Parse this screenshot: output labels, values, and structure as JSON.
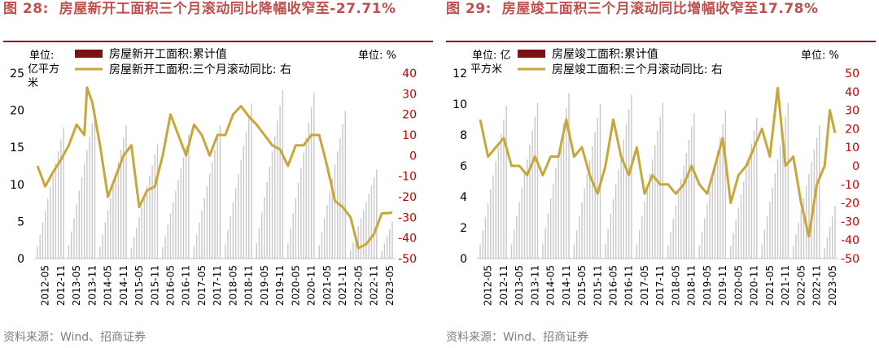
{
  "charts": [
    {
      "id": "left",
      "title": "图 28:  房屋新开工面积三个月滚动同比降幅收窄至-27.71%",
      "source": "资料来源：Wind、招商证券",
      "left_unit": "单位:亿平方米",
      "right_unit": "单位:  %",
      "legend": [
        "房屋新开工面积:累计值",
        "房屋新开工面积:三个月滚动同比:  右"
      ]
    },
    {
      "id": "right",
      "title": "图 29:  房屋竣工面积三个月滚动同比增幅收窄至17.78%",
      "source": "资料来源：Wind、招商证券",
      "left_unit": "单位: 亿平方米",
      "right_unit": "单位:  %",
      "legend": [
        "房屋竣工面积:累计值",
        "房屋竣工面积:三个月滚动同比:  右"
      ]
    }
  ],
  "chart_data": [
    {
      "type": "bar+line",
      "title": "图 28:  房屋新开工面积三个月滚动同比降幅收窄至-27.71%",
      "x_start": "2012-02",
      "x_end": "2023-06",
      "x_tick_labels": [
        "2012-05",
        "2012-11",
        "2013-05",
        "2013-11",
        "2014-05",
        "2014-11",
        "2015-05",
        "2015-11",
        "2016-05",
        "2016-11",
        "2017-05",
        "2017-11",
        "2018-05",
        "2018-11",
        "2019-05",
        "2019-11",
        "2020-05",
        "2020-11",
        "2021-05",
        "2021-11",
        "2022-05",
        "2022-11",
        "2023-05"
      ],
      "y_left": {
        "min": 0,
        "max": 25,
        "step": 5,
        "label": "单位:亿平方米"
      },
      "y_right": {
        "min": -50,
        "max": 40,
        "step": 10,
        "label": "单位: %"
      },
      "series": [
        {
          "name": "房屋新开工面积:累计值",
          "axis": "left",
          "kind": "bar",
          "color": "#c8c8c8",
          "annual_totals": {
            "2012": 17.7,
            "2013": 20.1,
            "2014": 17.9,
            "2015": 15.4,
            "2016": 16.7,
            "2017": 17.9,
            "2018": 20.9,
            "2019": 22.7,
            "2020": 22.4,
            "2021": 19.9,
            "2022": 12.0,
            "2023": 5.0
          }
        },
        {
          "name": "房屋新开工面积:三个月滚动同比:  右",
          "axis": "right",
          "kind": "line",
          "color": "#c9a63a",
          "points": [
            [
              "2012-02",
              -5
            ],
            [
              "2012-05",
              -15
            ],
            [
              "2012-08",
              -8
            ],
            [
              "2012-11",
              -2
            ],
            [
              "2013-02",
              5
            ],
            [
              "2013-05",
              15
            ],
            [
              "2013-08",
              10
            ],
            [
              "2013-09",
              33
            ],
            [
              "2013-11",
              26
            ],
            [
              "2014-02",
              5
            ],
            [
              "2014-05",
              -20
            ],
            [
              "2014-08",
              -10
            ],
            [
              "2014-11",
              0
            ],
            [
              "2015-02",
              5
            ],
            [
              "2015-05",
              -25
            ],
            [
              "2015-08",
              -17
            ],
            [
              "2015-11",
              -15
            ],
            [
              "2016-02",
              0
            ],
            [
              "2016-05",
              20
            ],
            [
              "2016-08",
              10
            ],
            [
              "2016-11",
              0
            ],
            [
              "2017-02",
              15
            ],
            [
              "2017-05",
              10
            ],
            [
              "2017-08",
              0
            ],
            [
              "2017-11",
              10
            ],
            [
              "2018-02",
              10
            ],
            [
              "2018-05",
              20
            ],
            [
              "2018-08",
              24
            ],
            [
              "2018-11",
              19
            ],
            [
              "2019-02",
              15
            ],
            [
              "2019-05",
              10
            ],
            [
              "2019-08",
              5
            ],
            [
              "2019-11",
              3
            ],
            [
              "2020-02",
              -5
            ],
            [
              "2020-05",
              5
            ],
            [
              "2020-08",
              5
            ],
            [
              "2020-11",
              10
            ],
            [
              "2021-02",
              10
            ],
            [
              "2021-05",
              -5
            ],
            [
              "2021-08",
              -22
            ],
            [
              "2021-11",
              -25
            ],
            [
              "2022-02",
              -30
            ],
            [
              "2022-05",
              -45
            ],
            [
              "2022-08",
              -43
            ],
            [
              "2022-11",
              -38
            ],
            [
              "2023-02",
              -28
            ],
            [
              "2023-04",
              -28
            ],
            [
              "2023-06",
              -27.71
            ]
          ]
        }
      ]
    },
    {
      "type": "bar+line",
      "title": "图 29:  房屋竣工面积三个月滚动同比增幅收窄至17.78%",
      "x_start": "2012-02",
      "x_end": "2023-06",
      "x_tick_labels": [
        "2012-05",
        "2012-11",
        "2013-05",
        "2013-11",
        "2014-05",
        "2014-11",
        "2015-05",
        "2015-11",
        "2016-05",
        "2016-11",
        "2017-05",
        "2017-11",
        "2018-05",
        "2018-11",
        "2019-05",
        "2019-11",
        "2020-05",
        "2020-11",
        "2021-05",
        "2021-11",
        "2022-05",
        "2022-11",
        "2023-05"
      ],
      "y_left": {
        "min": 0,
        "max": 12,
        "step": 2,
        "label": "单位: 亿平方米"
      },
      "y_right": {
        "min": -50,
        "max": 50,
        "step": 10,
        "label": "单位: %"
      },
      "series": [
        {
          "name": "房屋竣工面积:累计值",
          "axis": "left",
          "kind": "bar",
          "color": "#c8c8c8",
          "annual_totals": {
            "2012": 9.9,
            "2013": 10.1,
            "2014": 10.7,
            "2015": 10.0,
            "2016": 10.6,
            "2017": 10.1,
            "2018": 9.4,
            "2019": 9.6,
            "2020": 9.1,
            "2021": 10.1,
            "2022": 8.6,
            "2023": 3.4
          }
        },
        {
          "name": "房屋竣工面积:三个月滚动同比:  右",
          "axis": "right",
          "kind": "line",
          "color": "#c9a63a",
          "points": [
            [
              "2012-02",
              25
            ],
            [
              "2012-05",
              5
            ],
            [
              "2012-08",
              10
            ],
            [
              "2012-11",
              15
            ],
            [
              "2013-02",
              0
            ],
            [
              "2013-05",
              0
            ],
            [
              "2013-08",
              -5
            ],
            [
              "2013-11",
              5
            ],
            [
              "2014-02",
              -5
            ],
            [
              "2014-05",
              5
            ],
            [
              "2014-08",
              5
            ],
            [
              "2014-11",
              25
            ],
            [
              "2015-02",
              5
            ],
            [
              "2015-05",
              10
            ],
            [
              "2015-08",
              -5
            ],
            [
              "2015-11",
              -15
            ],
            [
              "2016-02",
              0
            ],
            [
              "2016-05",
              25
            ],
            [
              "2016-08",
              5
            ],
            [
              "2016-11",
              -5
            ],
            [
              "2017-02",
              10
            ],
            [
              "2017-05",
              -15
            ],
            [
              "2017-08",
              -5
            ],
            [
              "2017-11",
              -10
            ],
            [
              "2018-02",
              -10
            ],
            [
              "2018-05",
              -15
            ],
            [
              "2018-08",
              -10
            ],
            [
              "2018-11",
              0
            ],
            [
              "2019-02",
              -10
            ],
            [
              "2019-05",
              -15
            ],
            [
              "2019-08",
              0
            ],
            [
              "2019-11",
              15
            ],
            [
              "2020-02",
              -20
            ],
            [
              "2020-05",
              -5
            ],
            [
              "2020-08",
              0
            ],
            [
              "2020-11",
              10
            ],
            [
              "2021-02",
              20
            ],
            [
              "2021-05",
              5
            ],
            [
              "2021-08",
              42
            ],
            [
              "2021-11",
              0
            ],
            [
              "2022-02",
              5
            ],
            [
              "2022-05",
              -20
            ],
            [
              "2022-08",
              -38
            ],
            [
              "2022-11",
              -10
            ],
            [
              "2023-02",
              0
            ],
            [
              "2023-04",
              30
            ],
            [
              "2023-06",
              17.78
            ]
          ]
        }
      ]
    }
  ]
}
